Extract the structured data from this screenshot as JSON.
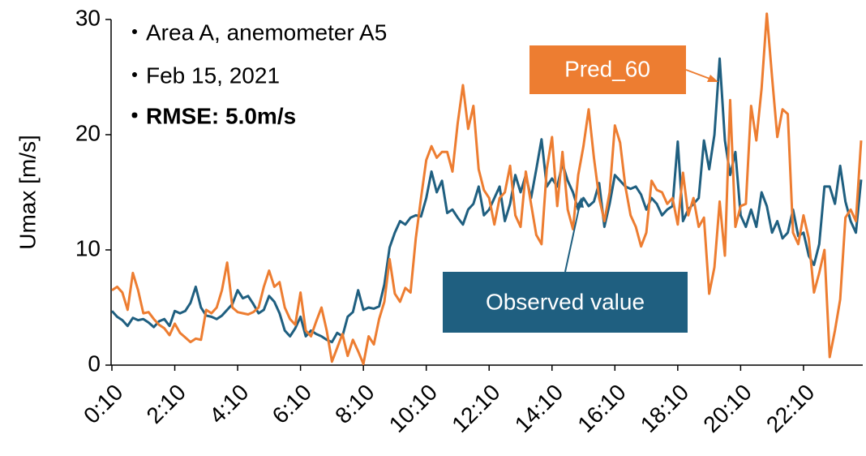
{
  "chart_data": {
    "type": "line",
    "y_label": "Umax [m/s]",
    "annotations": [
      "・Area A, anemometer A5",
      "・Feb 15, 2021",
      "・RMSE: 5.0m/s"
    ],
    "categories": [
      "0:10",
      null,
      null,
      null,
      null,
      null,
      null,
      null,
      null,
      null,
      null,
      null,
      "2:10",
      null,
      null,
      null,
      null,
      null,
      null,
      null,
      null,
      null,
      null,
      null,
      "4:10",
      null,
      null,
      null,
      null,
      null,
      null,
      null,
      null,
      null,
      null,
      null,
      "6:10",
      null,
      null,
      null,
      null,
      null,
      null,
      null,
      null,
      null,
      null,
      null,
      "8:10",
      null,
      null,
      null,
      null,
      null,
      null,
      null,
      null,
      null,
      null,
      null,
      "10:10",
      null,
      null,
      null,
      null,
      null,
      null,
      null,
      null,
      null,
      null,
      null,
      "12:10",
      null,
      null,
      null,
      null,
      null,
      null,
      null,
      null,
      null,
      null,
      null,
      "14:10",
      null,
      null,
      null,
      null,
      null,
      null,
      null,
      null,
      null,
      null,
      null,
      "16:10",
      null,
      null,
      null,
      null,
      null,
      null,
      null,
      null,
      null,
      null,
      null,
      "18:10",
      null,
      null,
      null,
      null,
      null,
      null,
      null,
      null,
      null,
      null,
      null,
      "20:10",
      null,
      null,
      null,
      null,
      null,
      null,
      null,
      null,
      null,
      null,
      null,
      "22:10",
      null,
      null,
      null,
      null,
      null,
      null,
      null,
      null,
      null,
      null,
      null
    ],
    "series": [
      {
        "name": "Observed value",
        "color": "#1f5f80",
        "values": [
          4.7,
          4.2,
          3.9,
          3.4,
          4.1,
          3.9,
          4.0,
          3.7,
          3.3,
          3.8,
          4.0,
          3.4,
          4.7,
          4.5,
          4.7,
          5.4,
          6.8,
          5.0,
          4.3,
          4.2,
          4.0,
          4.3,
          4.8,
          5.3,
          6.5,
          5.8,
          6.0,
          5.3,
          4.5,
          4.8,
          6.0,
          5.5,
          4.5,
          3.0,
          2.5,
          3.2,
          4.2,
          2.5,
          3.0,
          2.7,
          2.5,
          2.2,
          2.0,
          2.8,
          2.5,
          4.2,
          4.6,
          6.5,
          4.8,
          5.0,
          4.9,
          5.1,
          7.0,
          10.2,
          11.5,
          12.5,
          12.2,
          12.8,
          13.0,
          12.9,
          14.5,
          16.8,
          15.0,
          16.0,
          13.2,
          13.5,
          12.8,
          12.2,
          13.5,
          14.0,
          15.5,
          13.0,
          13.5,
          14.5,
          15.5,
          12.5,
          14.0,
          16.5,
          15.0,
          16.5,
          14.5,
          17.0,
          19.6,
          15.5,
          16.2,
          15.5,
          17.5,
          16.0,
          15.0,
          13.5,
          14.5,
          13.8,
          14.2,
          15.8,
          12.0,
          14.0,
          16.5,
          16.0,
          15.5,
          15.3,
          15.5,
          14.8,
          13.5,
          14.5,
          14.0,
          13.0,
          13.5,
          13.8,
          19.4,
          12.5,
          13.5,
          14.0,
          14.5,
          19.5,
          17.0,
          20.0,
          26.6,
          19.5,
          16.5,
          18.5,
          13.0,
          12.0,
          13.5,
          12.0,
          15.0,
          13.8,
          11.5,
          12.5,
          11.0,
          11.5,
          13.5,
          11.2,
          11.5,
          9.5,
          8.7,
          10.5,
          15.5,
          15.5,
          14.0,
          17.3,
          14.2,
          12.5,
          11.5,
          16.1
        ]
      },
      {
        "name": "Pred_60",
        "color": "#ed7d31",
        "values": [
          6.5,
          6.8,
          6.3,
          4.8,
          8.0,
          6.5,
          4.5,
          4.6,
          4.0,
          3.5,
          3.2,
          2.6,
          3.6,
          2.8,
          2.4,
          2.0,
          2.3,
          2.2,
          4.8,
          4.5,
          5.0,
          6.5,
          8.9,
          5.0,
          4.6,
          4.5,
          4.4,
          4.6,
          5.0,
          6.8,
          8.2,
          6.8,
          7.2,
          5.0,
          4.0,
          3.5,
          6.3,
          3.0,
          2.5,
          3.8,
          5.0,
          3.0,
          0.3,
          1.5,
          2.7,
          0.8,
          2.2,
          1.2,
          0.1,
          2.5,
          1.8,
          4.0,
          5.5,
          9.2,
          6.2,
          5.5,
          6.7,
          6.3,
          11.0,
          14.5,
          17.8,
          19.0,
          18.0,
          18.5,
          18.5,
          16.8,
          21.0,
          24.3,
          20.5,
          22.5,
          17.0,
          15.2,
          14.5,
          12.2,
          14.5,
          15.0,
          17.3,
          13.0,
          12.0,
          16.8,
          14.0,
          11.3,
          10.5,
          17.0,
          19.8,
          13.8,
          18.5,
          13.5,
          11.8,
          16.5,
          19.0,
          22.2,
          18.0,
          14.5,
          12.5,
          15.0,
          20.8,
          19.3,
          15.5,
          13.0,
          12.0,
          10.3,
          11.5,
          16.0,
          15.2,
          15.0,
          14.0,
          14.5,
          12.2,
          16.7,
          13.0,
          14.5,
          12.0,
          12.8,
          6.2,
          8.5,
          14.2,
          9.5,
          23.0,
          12.0,
          13.8,
          14.0,
          22.5,
          19.5,
          24.0,
          30.5,
          25.0,
          19.8,
          22.2,
          21.8,
          11.5,
          10.5,
          13.0,
          11.0,
          6.3,
          8.0,
          10.0,
          0.7,
          3.0,
          5.7,
          12.8,
          13.5,
          12.5,
          19.5
        ]
      }
    ],
    "ylim": [
      0,
      30
    ],
    "yticks": [
      0,
      10,
      20,
      30
    ]
  }
}
